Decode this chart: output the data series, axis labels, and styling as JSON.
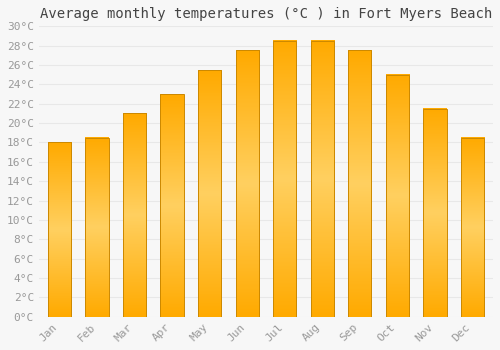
{
  "title": "Average monthly temperatures (°C ) in Fort Myers Beach",
  "months": [
    "Jan",
    "Feb",
    "Mar",
    "Apr",
    "May",
    "Jun",
    "Jul",
    "Aug",
    "Sep",
    "Oct",
    "Nov",
    "Dec"
  ],
  "values": [
    18.0,
    18.5,
    21.0,
    23.0,
    25.5,
    27.5,
    28.5,
    28.5,
    27.5,
    25.0,
    21.5,
    18.5
  ],
  "bar_color_main": "#FFAA00",
  "bar_color_light": "#FFD060",
  "bar_edge_color": "#CC8800",
  "ylim": [
    0,
    30
  ],
  "yticks": [
    0,
    2,
    4,
    6,
    8,
    10,
    12,
    14,
    16,
    18,
    20,
    22,
    24,
    26,
    28,
    30
  ],
  "ytick_labels": [
    "0°C",
    "2°C",
    "4°C",
    "6°C",
    "8°C",
    "10°C",
    "12°C",
    "14°C",
    "16°C",
    "18°C",
    "20°C",
    "22°C",
    "24°C",
    "26°C",
    "28°C",
    "30°C"
  ],
  "bg_color": "#f7f7f7",
  "grid_color": "#e8e8e8",
  "title_fontsize": 10,
  "tick_fontsize": 8,
  "tick_label_color": "#999999",
  "tick_font": "monospace"
}
